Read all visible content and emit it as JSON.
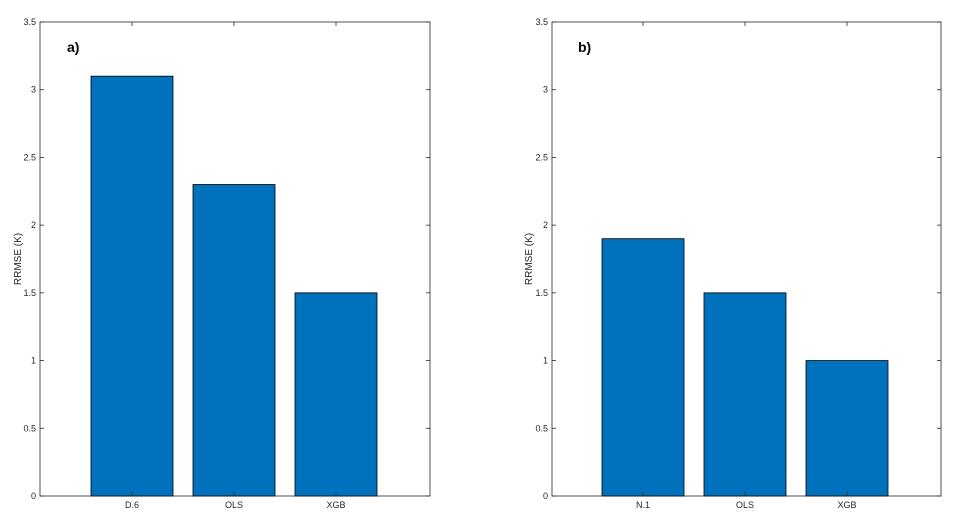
{
  "chart_data": [
    {
      "type": "bar",
      "panel_label": "a)",
      "categories": [
        "D.6",
        "OLS",
        "XGB"
      ],
      "values": [
        3.1,
        2.3,
        1.5
      ],
      "ylabel": "RRMSE (K)",
      "xlabel": "",
      "ylim": [
        0,
        3.5
      ],
      "yticks": [
        "0",
        "0.5",
        "1",
        "1.5",
        "2",
        "2.5",
        "3",
        "3.5"
      ],
      "grid": false,
      "bar_color": "#0072BD"
    },
    {
      "type": "bar",
      "panel_label": "b)",
      "categories": [
        "N.1",
        "OLS",
        "XGB"
      ],
      "values": [
        1.9,
        1.5,
        1.0
      ],
      "ylabel": "RRMSE (K)",
      "xlabel": "",
      "ylim": [
        0,
        3.5
      ],
      "yticks": [
        "0",
        "0.5",
        "1",
        "1.5",
        "2",
        "2.5",
        "3",
        "3.5"
      ],
      "grid": false,
      "bar_color": "#0072BD"
    }
  ]
}
